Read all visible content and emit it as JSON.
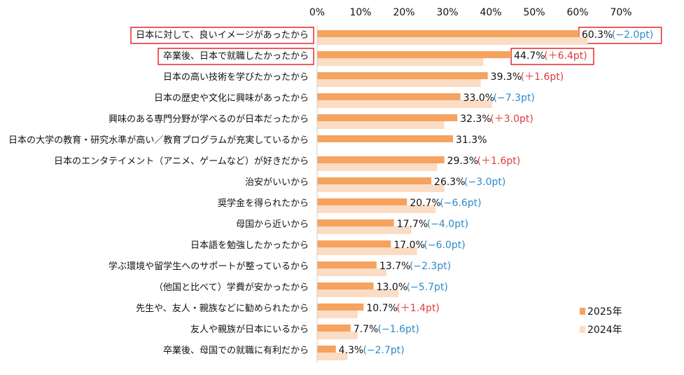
{
  "chart_data": {
    "type": "bar",
    "orientation": "horizontal",
    "title": "",
    "xlabel": "",
    "ylabel": "",
    "xlim": [
      0,
      70
    ],
    "ticks": [
      "0%",
      "10%",
      "20%",
      "30%",
      "40%",
      "50%",
      "60%",
      "70%"
    ],
    "grid": false,
    "legend_position": "bottom-right",
    "categories": [
      "日本に対して、良いイメージがあったから",
      "卒業後、日本で就職したかったから",
      "日本の高い技術を学びたかったから",
      "日本の歴史や文化に興味があったから",
      "興味のある専門分野が学べるのが日本だったから",
      "日本の大学の教育・研究水準が高い／教育プログラムが充実しているから",
      "日本のエンタテイメント（アニメ、ゲームなど）が好きだから",
      "治安がいいから",
      "奨学金を得られたから",
      "母国から近いから",
      "日本語を勉強したかったから",
      "学ぶ環境や留学生へのサポートが整っているから",
      "（他国と比べて）学費が安かったから",
      "先生や、友人・親族などに勧められたから",
      "友人や親族が日本にいるから",
      "卒業後、母国での就職に有利だから"
    ],
    "series": [
      {
        "name": "2025年",
        "color": "#f5a35f",
        "values": [
          60.3,
          44.7,
          39.3,
          33.0,
          32.3,
          31.3,
          29.3,
          26.3,
          20.7,
          17.7,
          17.0,
          13.7,
          13.0,
          10.7,
          7.7,
          4.3
        ]
      },
      {
        "name": "2024年",
        "color": "#fbdcc4",
        "values": [
          62.3,
          38.3,
          37.7,
          40.3,
          29.3,
          null,
          27.7,
          29.3,
          27.3,
          21.7,
          23.0,
          16.0,
          18.7,
          9.3,
          9.3,
          7.0
        ]
      }
    ],
    "value_labels": [
      "60.3%",
      "44.7%",
      "39.3%",
      "33.0%",
      "32.3%",
      "31.3%",
      "29.3%",
      "26.3%",
      "20.7%",
      "17.7%",
      "17.0%",
      "13.7%",
      "13.0%",
      "10.7%",
      "7.7%",
      "4.3%"
    ],
    "diff_labels": [
      "(−2.0pt)",
      "(＋6.4pt)",
      "(＋1.6pt)",
      "(−7.3pt)",
      "(＋3.0pt)",
      "",
      "(＋1.6pt)",
      "(−3.0pt)",
      "(−6.6pt)",
      "(−4.0pt)",
      "(−6.0pt)",
      "(−2.3pt)",
      "(−5.7pt)",
      "(＋1.4pt)",
      "(−1.6pt)",
      "(−2.7pt)"
    ],
    "diff_colors": {
      "positive": "#e03c3c",
      "negative": "#2e8bc9"
    },
    "highlighted": [
      0,
      1
    ],
    "highlight_color": "#e8262b"
  }
}
